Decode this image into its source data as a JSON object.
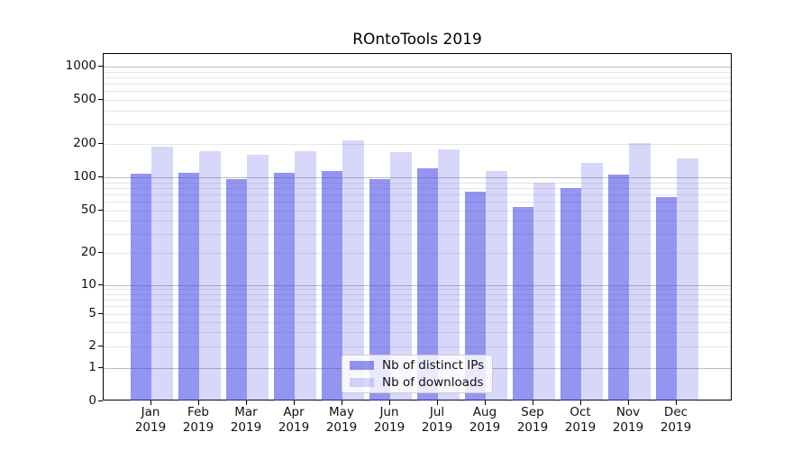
{
  "title": "ROntoTools 2019",
  "legend": {
    "items": [
      {
        "label": "Nb of distinct IPs",
        "series_key": "ips"
      },
      {
        "label": "Nb of downloads",
        "series_key": "downloads"
      }
    ]
  },
  "colors": {
    "ips": "rgba(64,64,230,0.56)",
    "downloads": "rgba(64,64,230,0.21)",
    "ips_hex_on_white": "#9494f1",
    "downloads_hex_on_white": "#d7d7fa",
    "grid_major": "#bdbdbd",
    "grid_minor": "#e6e6e6"
  },
  "chart_data": {
    "type": "bar",
    "title": "ROntoTools 2019",
    "categories": [
      "Jan 2019",
      "Feb 2019",
      "Mar 2019",
      "Apr 2019",
      "May 2019",
      "Jun 2019",
      "Jul 2019",
      "Aug 2019",
      "Sep 2019",
      "Oct 2019",
      "Nov 2019",
      "Dec 2019"
    ],
    "series": [
      {
        "name": "Nb of distinct IPs",
        "key": "ips",
        "values": [
          107,
          110,
          97,
          109,
          114,
          96,
          120,
          74,
          53,
          79,
          105,
          66
        ]
      },
      {
        "name": "Nb of downloads",
        "key": "downloads",
        "values": [
          188,
          171,
          160,
          171,
          217,
          168,
          180,
          113,
          90,
          135,
          202,
          147
        ]
      }
    ],
    "xlabel": "",
    "ylabel": "",
    "yscale": "symlog",
    "y_tick_values": [
      0,
      1,
      2,
      5,
      10,
      20,
      50,
      100,
      200,
      500,
      1000
    ],
    "ylim": [
      0,
      1300
    ],
    "grid": true,
    "legend_position": "lower center"
  }
}
